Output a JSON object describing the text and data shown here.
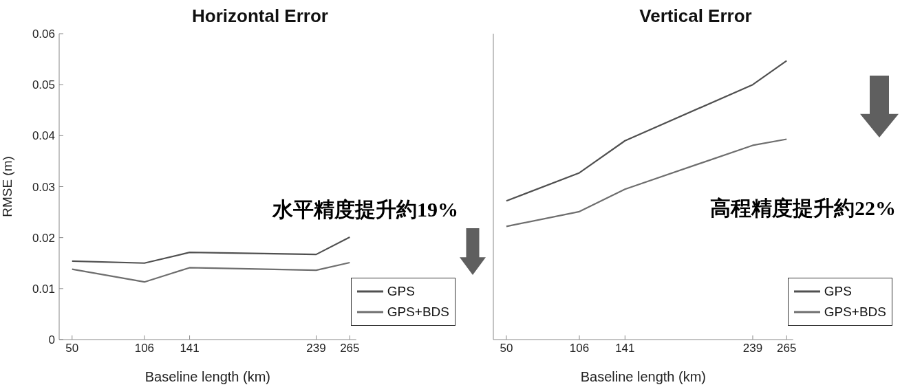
{
  "chart_data": [
    {
      "type": "line",
      "title": "Horizontal Error",
      "xlabel": "Baseline length (km)",
      "ylabel": "RMSE (m)",
      "x": [
        50,
        106,
        141,
        239,
        265
      ],
      "xlim": [
        40,
        270
      ],
      "xticks": [
        50,
        106,
        141,
        239,
        265
      ],
      "ylim": [
        0,
        0.06
      ],
      "yticks": [
        0,
        0.01,
        0.02,
        0.03,
        0.04,
        0.05,
        0.06
      ],
      "legend": "bottom right",
      "grid": false,
      "marker": "none",
      "line_style": "solid",
      "annotations": [
        "水平精度提升約19%"
      ],
      "series": [
        {
          "name": "GPS",
          "color": "#505050",
          "values": [
            0.0154,
            0.015,
            0.0171,
            0.0167,
            0.0201
          ]
        },
        {
          "name": "GPS+BDS",
          "color": "#6e6e6e",
          "values": [
            0.0138,
            0.0113,
            0.0141,
            0.0136,
            0.0151
          ]
        }
      ]
    },
    {
      "type": "line",
      "title": "Vertical Error",
      "xlabel": "Baseline length (km)",
      "x": [
        50,
        106,
        141,
        239,
        265
      ],
      "xlim": [
        40,
        270
      ],
      "xticks": [
        50,
        106,
        141,
        239,
        265
      ],
      "ylim": [
        0,
        0.06
      ],
      "yticks": [
        0,
        0.01,
        0.02,
        0.03,
        0.04,
        0.05,
        0.06
      ],
      "tick_labels": "x",
      "legend": "bottom right",
      "grid": false,
      "marker": "none",
      "line_style": "solid",
      "annotations": [
        "高程精度提升約22%"
      ],
      "series": [
        {
          "name": "GPS",
          "color": "#505050",
          "values": [
            0.0272,
            0.0327,
            0.039,
            0.05,
            0.0547
          ]
        },
        {
          "name": "GPS+BDS",
          "color": "#6e6e6e",
          "values": [
            0.0222,
            0.0251,
            0.0295,
            0.0381,
            0.0393
          ]
        }
      ]
    }
  ]
}
